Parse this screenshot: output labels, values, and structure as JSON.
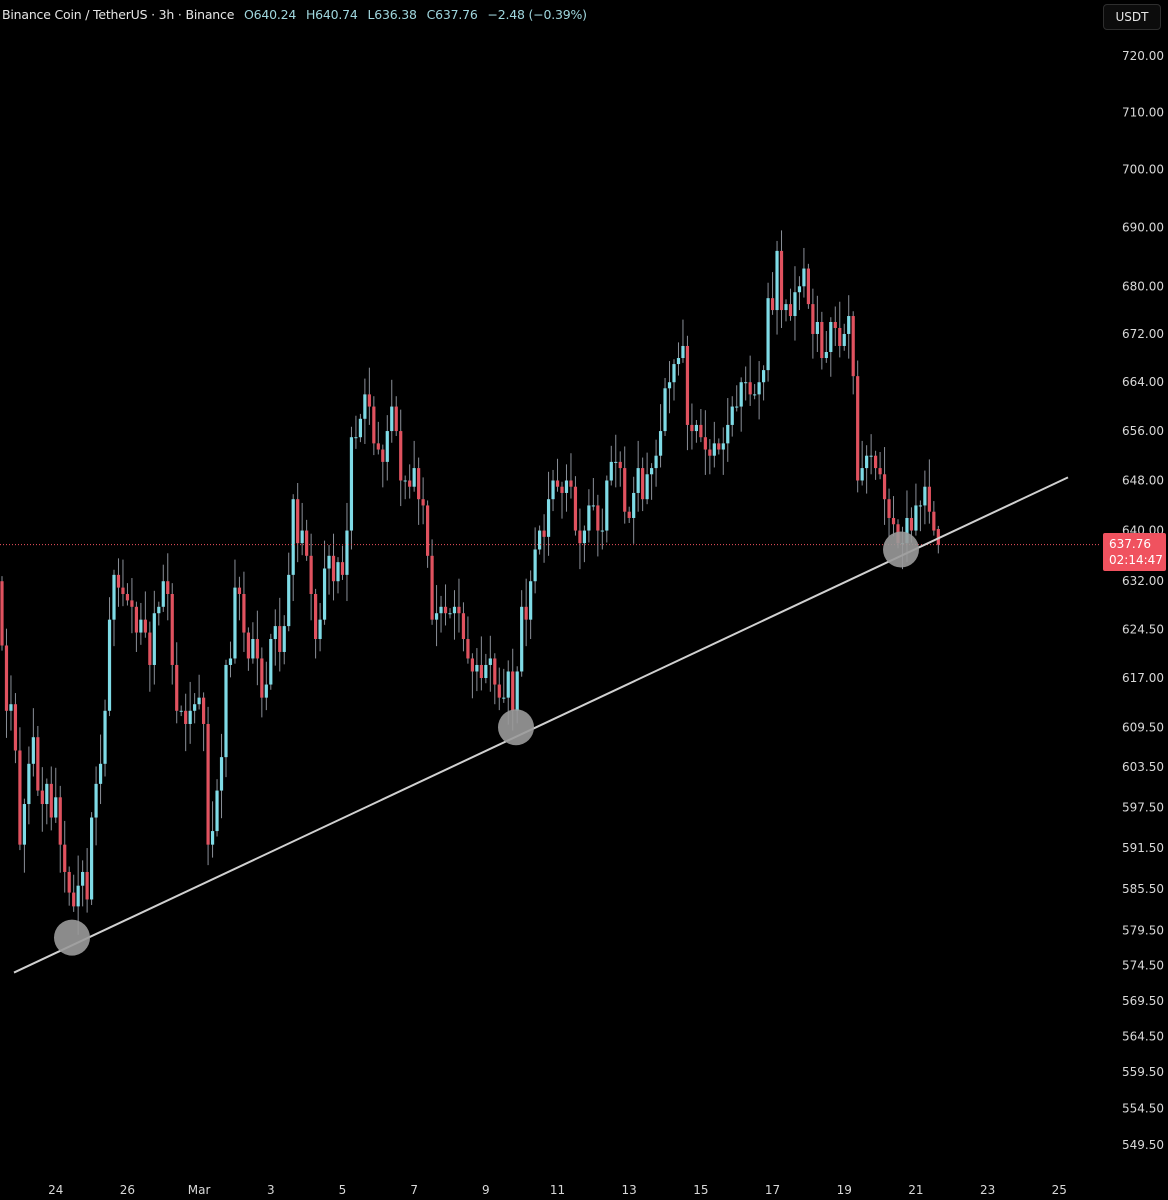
{
  "header": {
    "symbol": "Binance Coin / TetherUS · 3h · Binance",
    "open": "O640.24",
    "high": "H640.74",
    "low": "L636.38",
    "close": "C637.76",
    "change": "−2.48 (−0.39%)"
  },
  "currency_button": "USDT",
  "last_price": {
    "price": "637.76",
    "countdown": "02:14:47"
  },
  "colors": {
    "up": "#7fdbe6",
    "down": "#e0525f",
    "wick": "#8a8f98",
    "trendline": "#d0d0d0",
    "marker": "#9a9a9a",
    "price_line": "#f0525f",
    "background": "#000000"
  },
  "chart_data": {
    "type": "candlestick",
    "scale": "log",
    "timeframe": "3h",
    "ylim": [
      547,
      724
    ],
    "yticks": [
      720,
      710,
      700,
      690,
      680,
      672,
      664,
      656,
      648,
      640,
      632,
      624.5,
      617,
      609.5,
      603.5,
      597.5,
      591.5,
      585.5,
      579.5,
      574.5,
      569.5,
      564.5,
      559.5,
      554.5,
      549.5
    ],
    "xticks": [
      "24",
      "26",
      "Mar",
      "3",
      "5",
      "7",
      "9",
      "11",
      "13",
      "15",
      "17",
      "19",
      "21",
      "23",
      "25"
    ],
    "first_open": 632,
    "close": [
      622,
      612,
      613,
      606,
      592,
      598,
      604,
      608,
      600,
      598,
      601,
      596,
      599,
      592,
      588,
      585,
      583,
      586,
      588,
      584,
      596,
      601,
      604,
      612,
      626,
      633,
      631,
      630,
      629,
      628,
      624,
      626,
      624,
      619,
      627,
      628,
      632,
      630,
      619,
      612,
      612,
      610,
      612,
      613,
      614,
      610,
      592,
      594,
      600,
      605,
      619,
      620,
      631,
      630,
      624,
      620,
      623,
      620,
      614,
      616,
      623,
      625,
      621,
      625,
      633,
      645,
      638,
      640,
      636,
      630,
      623,
      626,
      634,
      636,
      632,
      635,
      633,
      640,
      655,
      655,
      658,
      662,
      660,
      654,
      653,
      651,
      656,
      660,
      656,
      648,
      648,
      647,
      650,
      645,
      644,
      636,
      626,
      627,
      628,
      627,
      627,
      628,
      627,
      623,
      620,
      618,
      619,
      617,
      619,
      620,
      616,
      614,
      614,
      618,
      612,
      618,
      628,
      626,
      632,
      637,
      640,
      639,
      645,
      648,
      647,
      646,
      648,
      647,
      640,
      638,
      640,
      644,
      644,
      640,
      640,
      648,
      651,
      651,
      650,
      643,
      642,
      646,
      650,
      645,
      649,
      650,
      652,
      656,
      663,
      664,
      667,
      668,
      670,
      657,
      656,
      657,
      655,
      653,
      652,
      654,
      653,
      654,
      657,
      660,
      660,
      664,
      664,
      662,
      662,
      664,
      666,
      678,
      676,
      686,
      676,
      677,
      675,
      679,
      680,
      683,
      677,
      672,
      674,
      668,
      669,
      674,
      673,
      670,
      672,
      675,
      665,
      648,
      650,
      652,
      652,
      650,
      649,
      645,
      642,
      641,
      638,
      638,
      642,
      640,
      644,
      644,
      647,
      643,
      640,
      637.76
    ],
    "last_candle": {
      "open": 640.24,
      "high": 640.74,
      "low": 636.38,
      "close": 637.76
    },
    "trendline": [
      {
        "date": "Feb 22",
        "price": 573.5
      },
      {
        "date": "Mar 24",
        "price": 648.5
      }
    ],
    "touch_points": [
      {
        "date": "Feb 24",
        "price": 578.5
      },
      {
        "date": "Mar 8",
        "price": 609.5
      },
      {
        "date": "Mar 19",
        "price": 637
      }
    ]
  }
}
